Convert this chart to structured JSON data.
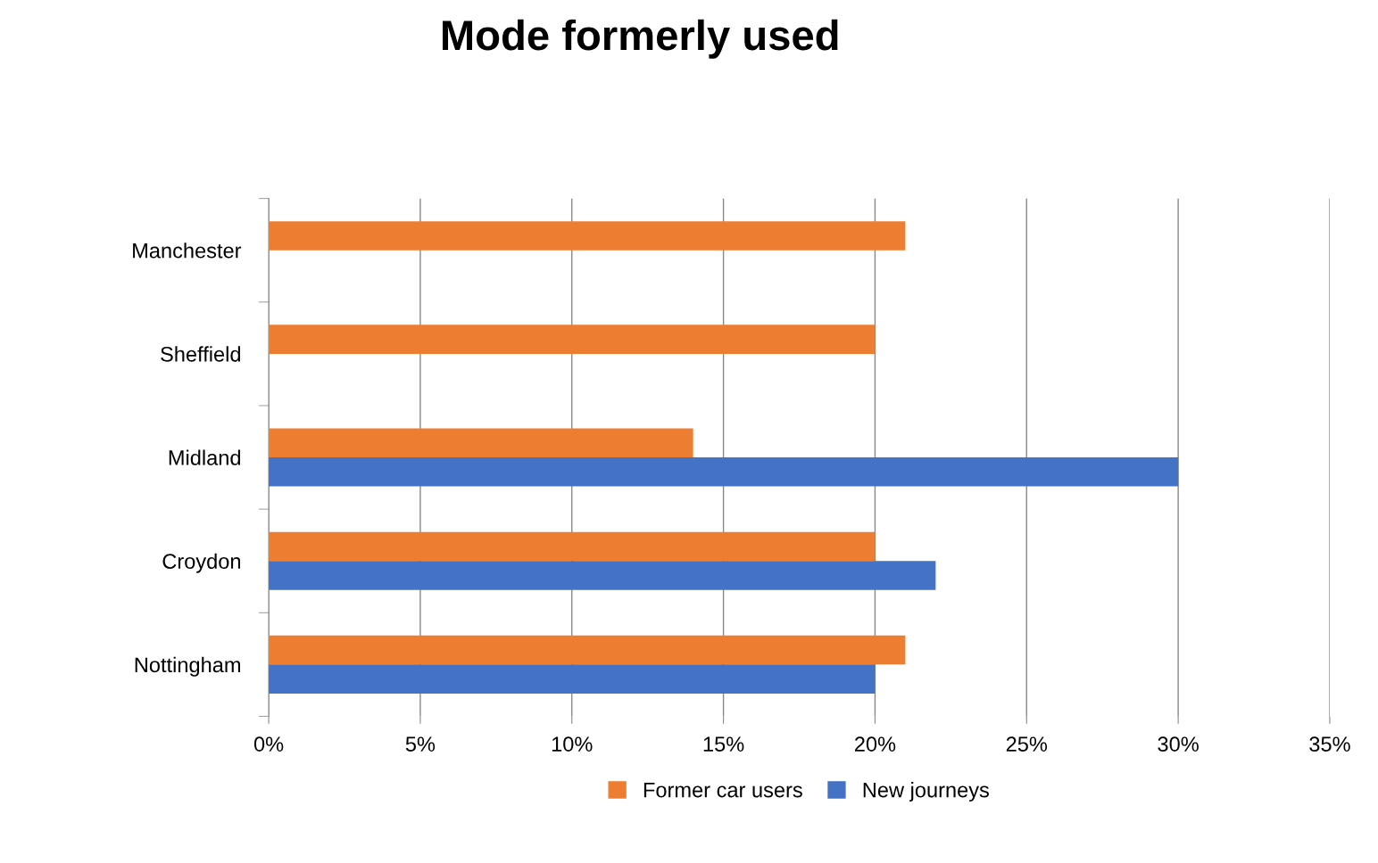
{
  "chart_data": {
    "type": "bar",
    "orientation": "horizontal",
    "title": "Mode formerly used",
    "categories": [
      "Manchester",
      "Sheffield",
      "Midland",
      "Croydon",
      "Nottingham"
    ],
    "series": [
      {
        "name": "Former car users",
        "color": "#ed7d31",
        "values": [
          21,
          20,
          14,
          20,
          21
        ]
      },
      {
        "name": "New journeys",
        "color": "#4472c4",
        "values": [
          null,
          null,
          30,
          22,
          20
        ]
      }
    ],
    "xlim": [
      0,
      35
    ],
    "xticks": [
      {
        "value": 0,
        "label": "0%"
      },
      {
        "value": 5,
        "label": "5%"
      },
      {
        "value": 10,
        "label": "10%"
      },
      {
        "value": 15,
        "label": "15%"
      },
      {
        "value": 20,
        "label": "20%"
      },
      {
        "value": 25,
        "label": "25%"
      },
      {
        "value": 30,
        "label": "30%"
      },
      {
        "value": 35,
        "label": "35%"
      }
    ],
    "grid": "x",
    "legend": "bottom"
  }
}
